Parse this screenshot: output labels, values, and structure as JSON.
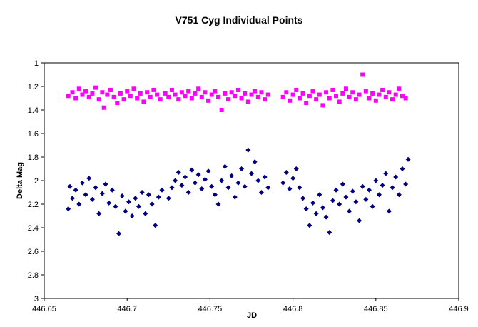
{
  "chart_data": {
    "type": "scatter",
    "title": "V751 Cyg Individual Points",
    "xlabel": "JD",
    "ylabel": "Delta Mag",
    "xlim": [
      446.65,
      446.9
    ],
    "ylim": [
      1,
      3
    ],
    "y_reversed": true,
    "x_ticks": [
      "446.65",
      "446.7",
      "446.75",
      "446.8",
      "446.85",
      "446.9"
    ],
    "y_ticks": [
      "1",
      "1.2",
      "1.4",
      "1.6",
      "1.8",
      "2",
      "2.2",
      "2.4",
      "2.6",
      "2.8",
      "3"
    ],
    "grid": false,
    "legend": "none",
    "series": [
      {
        "marker": "square",
        "color": "#ff00ff",
        "points": [
          [
            446.6645,
            1.28
          ],
          [
            446.667,
            1.25
          ],
          [
            446.669,
            1.3
          ],
          [
            446.671,
            1.22
          ],
          [
            446.673,
            1.27
          ],
          [
            446.675,
            1.24
          ],
          [
            446.677,
            1.29
          ],
          [
            446.679,
            1.26
          ],
          [
            446.681,
            1.21
          ],
          [
            446.683,
            1.31
          ],
          [
            446.685,
            1.25
          ],
          [
            446.686,
            1.38
          ],
          [
            446.688,
            1.27
          ],
          [
            446.69,
            1.23
          ],
          [
            446.692,
            1.29
          ],
          [
            446.694,
            1.34
          ],
          [
            446.696,
            1.26
          ],
          [
            446.698,
            1.31
          ],
          [
            446.7,
            1.24
          ],
          [
            446.702,
            1.28
          ],
          [
            446.704,
            1.22
          ],
          [
            446.706,
            1.3
          ],
          [
            446.708,
            1.26
          ],
          [
            446.71,
            1.33
          ],
          [
            446.712,
            1.25
          ],
          [
            446.714,
            1.29
          ],
          [
            446.716,
            1.23
          ],
          [
            446.718,
            1.27
          ],
          [
            446.72,
            1.31
          ],
          [
            446.723,
            1.26
          ],
          [
            446.725,
            1.29
          ],
          [
            446.727,
            1.23
          ],
          [
            446.729,
            1.27
          ],
          [
            446.731,
            1.31
          ],
          [
            446.733,
            1.25
          ],
          [
            446.735,
            1.28
          ],
          [
            446.737,
            1.24
          ],
          [
            446.739,
            1.3
          ],
          [
            446.741,
            1.26
          ],
          [
            446.743,
            1.22
          ],
          [
            446.745,
            1.29
          ],
          [
            446.747,
            1.25
          ],
          [
            446.749,
            1.32
          ],
          [
            446.751,
            1.27
          ],
          [
            446.753,
            1.24
          ],
          [
            446.755,
            1.29
          ],
          [
            446.757,
            1.4
          ],
          [
            446.759,
            1.26
          ],
          [
            446.761,
            1.31
          ],
          [
            446.763,
            1.25
          ],
          [
            446.765,
            1.28
          ],
          [
            446.767,
            1.23
          ],
          [
            446.769,
            1.3
          ],
          [
            446.771,
            1.26
          ],
          [
            446.773,
            1.33
          ],
          [
            446.775,
            1.27
          ],
          [
            446.777,
            1.24
          ],
          [
            446.779,
            1.29
          ],
          [
            446.781,
            1.25
          ],
          [
            446.783,
            1.31
          ],
          [
            446.785,
            1.27
          ],
          [
            446.794,
            1.29
          ],
          [
            446.796,
            1.25
          ],
          [
            446.798,
            1.32
          ],
          [
            446.8,
            1.27
          ],
          [
            446.802,
            1.23
          ],
          [
            446.804,
            1.3
          ],
          [
            446.806,
            1.26
          ],
          [
            446.808,
            1.34
          ],
          [
            446.81,
            1.28
          ],
          [
            446.812,
            1.24
          ],
          [
            446.814,
            1.31
          ],
          [
            446.816,
            1.27
          ],
          [
            446.818,
            1.36
          ],
          [
            446.82,
            1.25
          ],
          [
            446.822,
            1.3
          ],
          [
            446.824,
            1.23
          ],
          [
            446.826,
            1.28
          ],
          [
            446.828,
            1.33
          ],
          [
            446.83,
            1.26
          ],
          [
            446.832,
            1.22
          ],
          [
            446.834,
            1.29
          ],
          [
            446.836,
            1.25
          ],
          [
            446.838,
            1.31
          ],
          [
            446.84,
            1.27
          ],
          [
            446.842,
            1.1
          ],
          [
            446.844,
            1.24
          ],
          [
            446.846,
            1.3
          ],
          [
            446.848,
            1.26
          ],
          [
            446.85,
            1.32
          ],
          [
            446.852,
            1.27
          ],
          [
            446.854,
            1.23
          ],
          [
            446.856,
            1.29
          ],
          [
            446.858,
            1.25
          ],
          [
            446.86,
            1.31
          ],
          [
            446.862,
            1.27
          ],
          [
            446.864,
            1.22
          ],
          [
            446.866,
            1.28
          ],
          [
            446.868,
            1.3
          ]
        ]
      },
      {
        "marker": "diamond",
        "color": "#000080",
        "points": [
          [
            446.6645,
            2.24
          ],
          [
            446.6655,
            2.05
          ],
          [
            446.667,
            2.15
          ],
          [
            446.669,
            2.08
          ],
          [
            446.671,
            2.2
          ],
          [
            446.673,
            2.02
          ],
          [
            446.675,
            2.12
          ],
          [
            446.677,
            1.98
          ],
          [
            446.679,
            2.16
          ],
          [
            446.681,
            2.06
          ],
          [
            446.683,
            2.28
          ],
          [
            446.685,
            2.11
          ],
          [
            446.687,
            2.03
          ],
          [
            446.689,
            2.19
          ],
          [
            446.691,
            2.08
          ],
          [
            446.693,
            2.22
          ],
          [
            446.695,
            2.45
          ],
          [
            446.697,
            2.13
          ],
          [
            446.699,
            2.26
          ],
          [
            446.701,
            2.18
          ],
          [
            446.703,
            2.3
          ],
          [
            446.705,
            2.15
          ],
          [
            446.707,
            2.22
          ],
          [
            446.709,
            2.1
          ],
          [
            446.711,
            2.28
          ],
          [
            446.713,
            2.12
          ],
          [
            446.715,
            2.2
          ],
          [
            446.717,
            2.38
          ],
          [
            446.719,
            2.14
          ],
          [
            446.721,
            2.08
          ],
          [
            446.725,
            2.15
          ],
          [
            446.727,
            2.06
          ],
          [
            446.729,
            2.0
          ],
          [
            446.731,
            1.93
          ],
          [
            446.733,
            2.04
          ],
          [
            446.735,
            1.97
          ],
          [
            446.737,
            2.1
          ],
          [
            446.739,
            1.91
          ],
          [
            446.741,
            2.02
          ],
          [
            446.743,
            1.95
          ],
          [
            446.745,
            2.07
          ],
          [
            446.747,
            1.99
          ],
          [
            446.749,
            1.92
          ],
          [
            446.751,
            2.05
          ],
          [
            446.753,
            2.12
          ],
          [
            446.755,
            2.2
          ],
          [
            446.757,
            2.0
          ],
          [
            446.759,
            1.88
          ],
          [
            446.761,
            2.06
          ],
          [
            446.763,
            1.96
          ],
          [
            446.765,
            2.14
          ],
          [
            446.767,
            2.02
          ],
          [
            446.769,
            1.9
          ],
          [
            446.771,
            2.05
          ],
          [
            446.773,
            1.74
          ],
          [
            446.775,
            1.94
          ],
          [
            446.777,
            1.84
          ],
          [
            446.779,
            2.0
          ],
          [
            446.781,
            2.1
          ],
          [
            446.783,
            1.97
          ],
          [
            446.785,
            2.06
          ],
          [
            446.794,
            2.02
          ],
          [
            446.796,
            1.93
          ],
          [
            446.798,
            2.07
          ],
          [
            446.8,
            1.98
          ],
          [
            446.802,
            1.9
          ],
          [
            446.804,
            2.06
          ],
          [
            446.806,
            2.15
          ],
          [
            446.808,
            2.24
          ],
          [
            446.81,
            2.38
          ],
          [
            446.812,
            2.19
          ],
          [
            446.814,
            2.28
          ],
          [
            446.816,
            2.12
          ],
          [
            446.818,
            2.23
          ],
          [
            446.82,
            2.31
          ],
          [
            446.822,
            2.44
          ],
          [
            446.824,
            2.17
          ],
          [
            446.826,
            2.08
          ],
          [
            446.828,
            2.2
          ],
          [
            446.83,
            2.03
          ],
          [
            446.832,
            2.14
          ],
          [
            446.834,
            2.26
          ],
          [
            446.836,
            2.09
          ],
          [
            446.838,
            2.18
          ],
          [
            446.84,
            2.34
          ],
          [
            446.842,
            2.05
          ],
          [
            446.844,
            2.16
          ],
          [
            446.846,
            2.08
          ],
          [
            446.848,
            2.22
          ],
          [
            446.85,
            2.0
          ],
          [
            446.852,
            2.12
          ],
          [
            446.854,
            2.04
          ],
          [
            446.856,
            1.94
          ],
          [
            446.858,
            2.26
          ],
          [
            446.86,
            2.06
          ],
          [
            446.862,
            1.97
          ],
          [
            446.864,
            2.12
          ],
          [
            446.866,
            1.9
          ],
          [
            446.868,
            2.03
          ],
          [
            446.8695,
            1.82
          ]
        ]
      }
    ]
  }
}
